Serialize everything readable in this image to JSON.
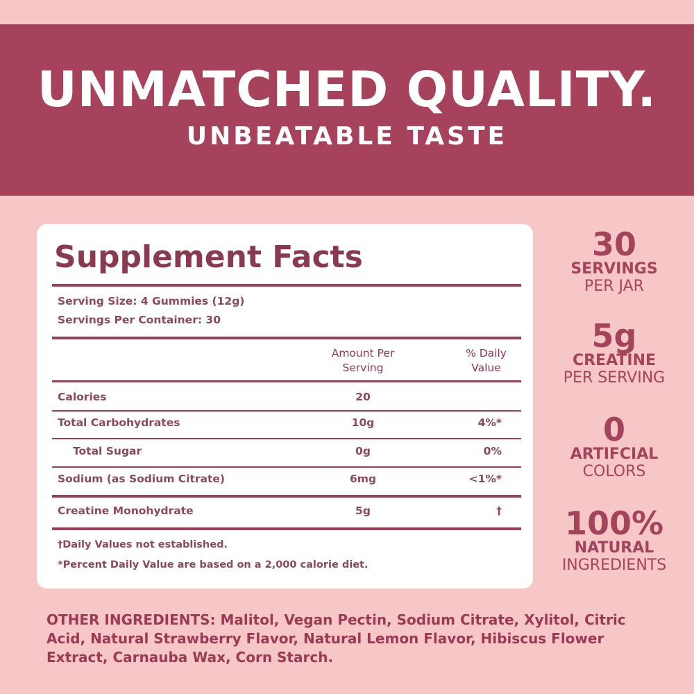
{
  "header": {
    "title": "UNMATCHED QUALITY.",
    "subtitle": "UNBEATABLE TASTE"
  },
  "facts": {
    "title": "Supplement Facts",
    "serving_size": "Serving Size: 4 Gummies (12g)",
    "servings_per_container": "Servings Per Container: 30",
    "columns": [
      "Amount Per Serving",
      "% Daily Value"
    ],
    "rows": [
      {
        "name": "Calories",
        "amount": "20"
      },
      {
        "name": "Total Carbohydrates",
        "amount": "10g",
        "dv": "4%*"
      },
      {
        "name": "Total Sugar",
        "amount": "0g",
        "dv": "0%"
      },
      {
        "name": "Sodium (as Sodium Citrate)",
        "amount": "6mg",
        "dv": "<1%*"
      },
      {
        "name": "Creatine Monohydrate",
        "amount": "5g",
        "dv": "†"
      }
    ],
    "footnotes": [
      "†Daily Values not established.",
      "*Percent Daily Value are based on a 2,000 calorie diet."
    ]
  },
  "stats": [
    {
      "number": "30",
      "label": "SERVINGS",
      "sub": "PER JAR"
    },
    {
      "number": "5g",
      "label": "CREATINE",
      "sub": "PER SERVING"
    },
    {
      "number": "0",
      "label": "ARTIFCIAL",
      "sub": "COLORS"
    },
    {
      "number": "100%",
      "label": "NATURAL",
      "sub": "INGREDIENTS"
    }
  ],
  "other_ingredients": {
    "label": "OTHER INGREDIENTS:",
    "text": "Malitol, Vegan Pectin, Sodium Citrate, Xylitol, Citric Acid, Natural Strawberry Flavor, Natural Lemon Flavor, Hibiscus Flower Extract, Carnauba Wax, Corn Starch."
  }
}
